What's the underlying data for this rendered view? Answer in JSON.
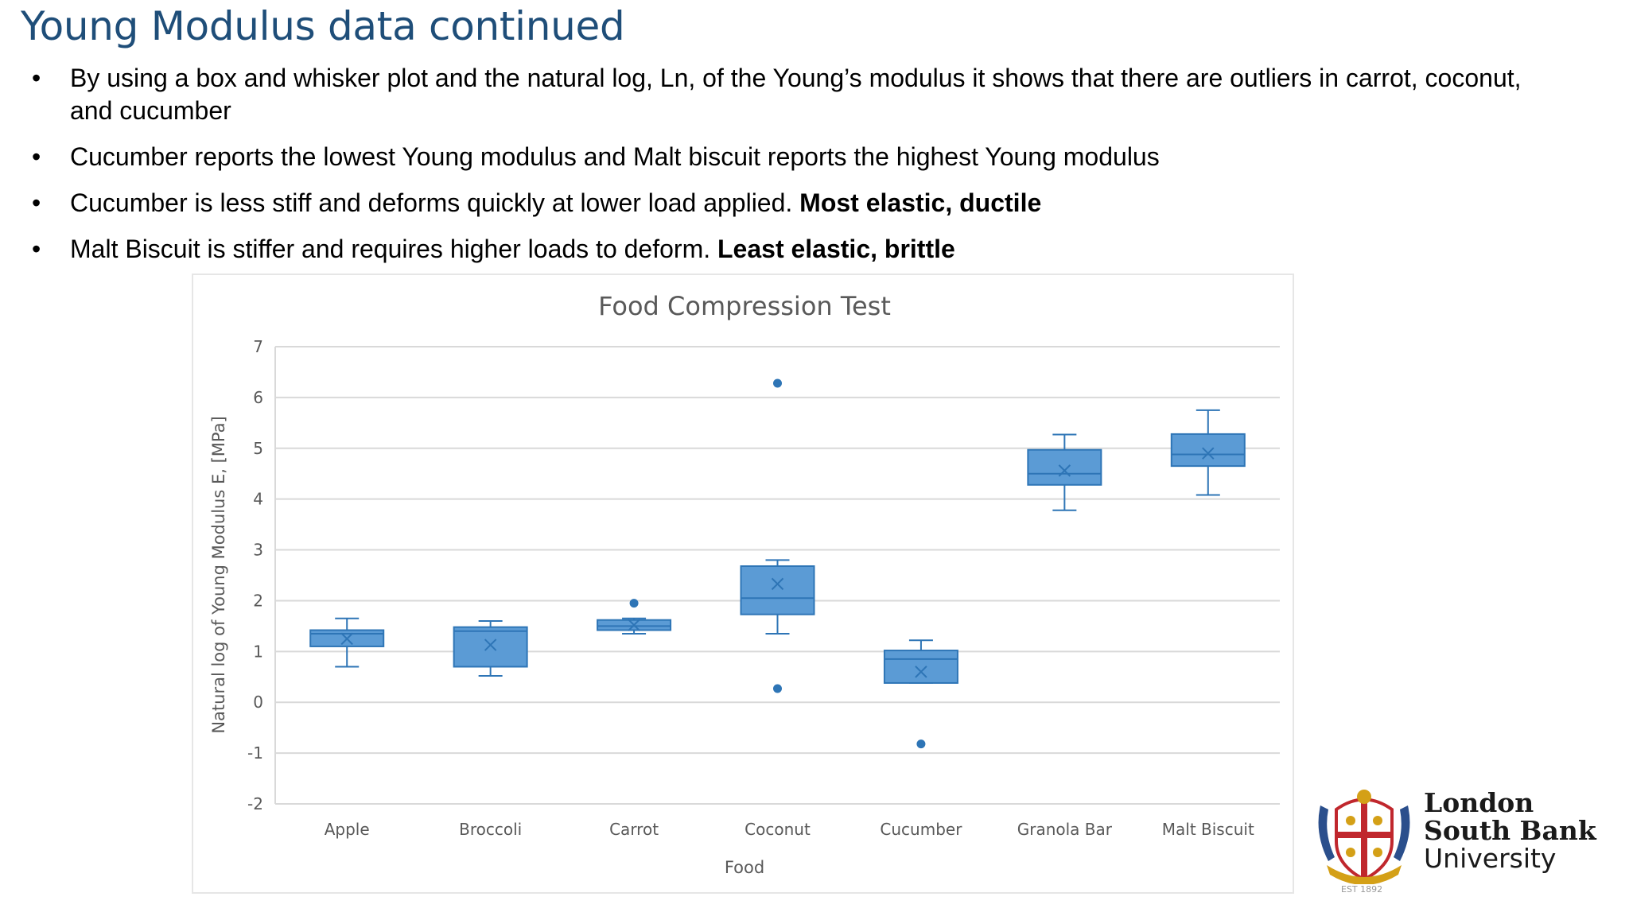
{
  "slide": {
    "title": "Young Modulus data continued",
    "bullets": [
      {
        "text": "By using a box and whisker plot and the natural log, Ln, of the Young’s modulus it shows that there are outliers in carrot, coconut, and cucumber",
        "bold": ""
      },
      {
        "text": "Cucumber reports the lowest Young modulus and Malt biscuit reports the highest Young modulus",
        "bold": ""
      },
      {
        "text": "Cucumber is less stiff and deforms quickly at lower load applied. ",
        "bold": "Most elastic, ductile"
      },
      {
        "text": "Malt Biscuit is stiffer and requires higher loads to deform. ",
        "bold": "Least elastic, brittle"
      }
    ],
    "bullet_marker": "•"
  },
  "logo": {
    "line1": "London",
    "line2": "South Bank",
    "line3": "University",
    "est": "EST 1892",
    "colors": {
      "red": "#c0272d",
      "gold": "#d4a017",
      "blue": "#2b4f8c"
    }
  },
  "chart_data": {
    "type": "boxplot",
    "title": "Food Compression Test",
    "xlabel": "Food",
    "ylabel": "Natural log of Young  Modulus E, [MPa]",
    "ylim": [
      -2,
      7
    ],
    "yticks": [
      -2,
      -1,
      0,
      1,
      2,
      3,
      4,
      5,
      6,
      7
    ],
    "grid": true,
    "color": "#5b9bd5",
    "edge_color": "#2e75b6",
    "categories": [
      "Apple",
      "Broccoli",
      "Carrot",
      "Coconut",
      "Cucumber",
      "Granola Bar",
      "Malt Biscuit"
    ],
    "boxes": [
      {
        "name": "Apple",
        "min": 0.7,
        "q1": 1.1,
        "median": 1.35,
        "q3": 1.42,
        "max": 1.65,
        "mean": 1.25,
        "outliers": []
      },
      {
        "name": "Broccoli",
        "min": 0.52,
        "q1": 0.7,
        "median": 1.4,
        "q3": 1.48,
        "max": 1.6,
        "mean": 1.13,
        "outliers": []
      },
      {
        "name": "Carrot",
        "min": 1.35,
        "q1": 1.42,
        "median": 1.5,
        "q3": 1.62,
        "max": 1.65,
        "mean": 1.52,
        "outliers": [
          1.95
        ]
      },
      {
        "name": "Coconut",
        "min": 1.35,
        "q1": 1.73,
        "median": 2.05,
        "q3": 2.68,
        "max": 2.8,
        "mean": 2.33,
        "outliers": [
          6.28,
          0.27
        ]
      },
      {
        "name": "Cucumber",
        "min": 0.38,
        "q1": 0.38,
        "median": 0.85,
        "q3": 1.02,
        "max": 1.22,
        "mean": 0.6,
        "outliers": [
          -0.82
        ]
      },
      {
        "name": "Granola Bar",
        "min": 3.78,
        "q1": 4.28,
        "median": 4.5,
        "q3": 4.97,
        "max": 5.27,
        "mean": 4.56,
        "outliers": []
      },
      {
        "name": "Malt Biscuit",
        "min": 4.08,
        "q1": 4.65,
        "median": 4.88,
        "q3": 5.28,
        "max": 5.75,
        "mean": 4.9,
        "outliers": []
      }
    ]
  }
}
